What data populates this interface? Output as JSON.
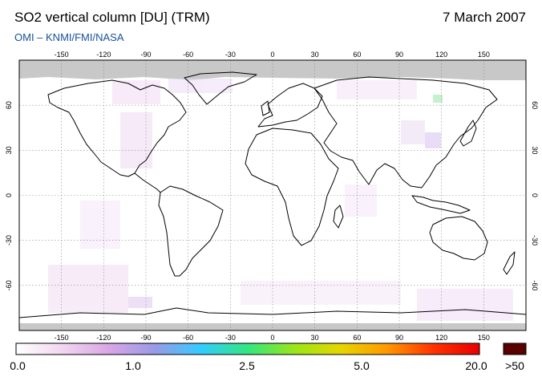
{
  "header": {
    "title": "SO2 vertical column [DU] (TRM)",
    "date": "7 March 2007",
    "credit": "OMI  –  KNMI/FMI/NASA"
  },
  "map": {
    "projection": "equirectangular",
    "lon_ticks": [
      "-150",
      "-120",
      "-90",
      "-60",
      "-30",
      "0",
      "30",
      "60",
      "90",
      "120",
      "150"
    ],
    "lat_ticks": [
      "60",
      "30",
      "0",
      "-30",
      "-60"
    ],
    "polar_no_data_color": "#c8c8c8",
    "ocean_color": "#ffffff",
    "coast_color": "#000000",
    "grid_color": "#888888"
  },
  "colorbar": {
    "labels": [
      "0.0",
      "1.0",
      "2.5",
      "5.0",
      "20.0",
      ">50"
    ],
    "overflow_color": "#5a0000",
    "stops": [
      "#ffffff",
      "#f2d6f0",
      "#d9a6e6",
      "#9999e6",
      "#33ccff",
      "#33e680",
      "#99e619",
      "#e6d600",
      "#ff9900",
      "#ff3300",
      "#e60000"
    ]
  }
}
